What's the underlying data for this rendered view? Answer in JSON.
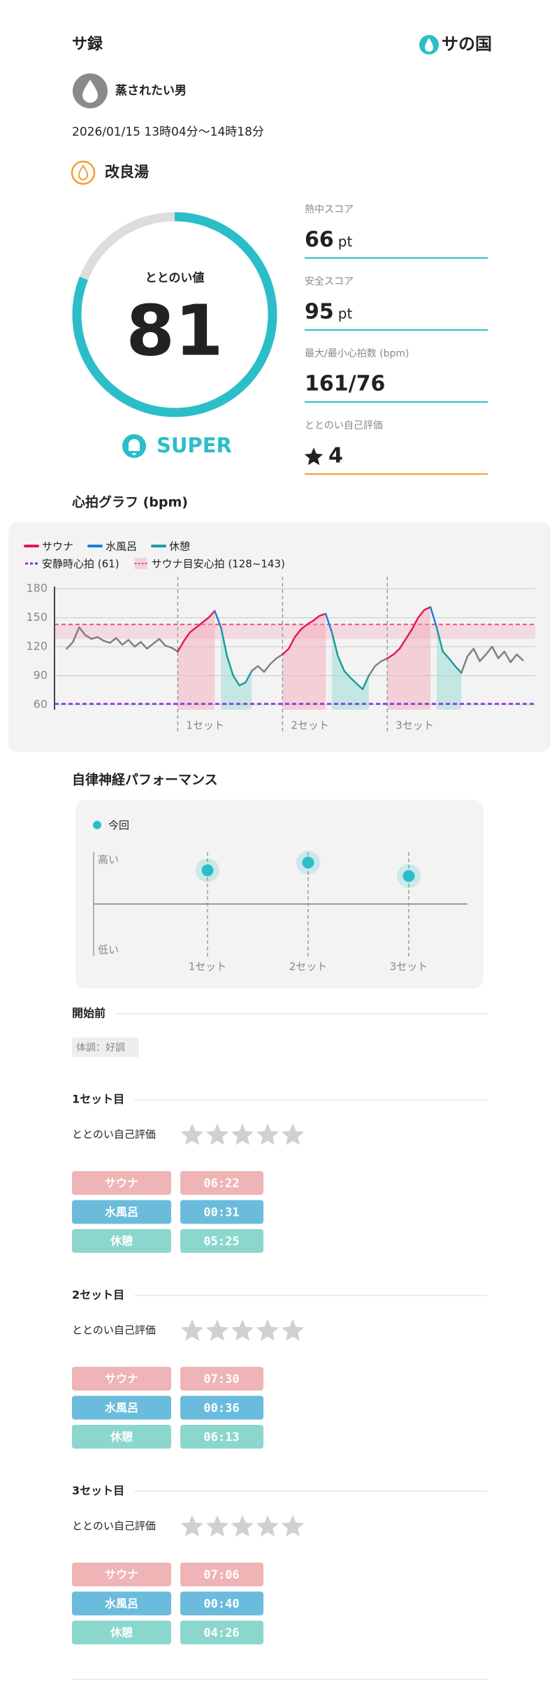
{
  "header": {
    "title": "サ録",
    "logo": "サの国"
  },
  "user": {
    "name": "蒸されたい男"
  },
  "session": {
    "datetime": "2026/01/15 13時04分〜14時18分",
    "facility": "改良湯"
  },
  "totonoi": {
    "label": "ととのい値",
    "value": 81,
    "lim": [
      0,
      100
    ],
    "rank": "SUPER",
    "color": "#2bbec8"
  },
  "scores": [
    {
      "label": "熱中スコア",
      "value": 66,
      "unit": "pt",
      "color": "#2bbec8"
    },
    {
      "label": "安全スコア",
      "value": 95,
      "unit": "pt",
      "color": "#2bbec8"
    },
    {
      "label": "最大/最小心拍数 (bpm)",
      "value": "161/76",
      "color": "#2bbec8"
    },
    {
      "label": "ととのい自己評価",
      "value": 4,
      "color": "#f0a030"
    }
  ],
  "chart_data": [
    {
      "type": "line",
      "title": "心拍グラフ (bpm)",
      "x": [
        0,
        1,
        2,
        3,
        4,
        5,
        6,
        7,
        8,
        9,
        10,
        11,
        12,
        13,
        14,
        15,
        16,
        17,
        18,
        19,
        20,
        21,
        22,
        23,
        24,
        25,
        26,
        27,
        28,
        29,
        30,
        31,
        32,
        33,
        34,
        35,
        36,
        37,
        38,
        39,
        40,
        41,
        42,
        43,
        44,
        45,
        46,
        47,
        48,
        49,
        50,
        51,
        52,
        53,
        54,
        55,
        56,
        57,
        58,
        59,
        60,
        61,
        62,
        63,
        64,
        65,
        66,
        67,
        68,
        69,
        70,
        71,
        72,
        73,
        74
      ],
      "xlim": [
        -2,
        76
      ],
      "ylim": [
        55,
        185
      ],
      "yticks": [
        60,
        90,
        120,
        150,
        180
      ],
      "grid": true,
      "series": [
        {
          "color": "#808080",
          "values": [
            118,
            125,
            140,
            132,
            128,
            130,
            126,
            124,
            129,
            122,
            127,
            120,
            125,
            118,
            123,
            128,
            121,
            119,
            115,
            null,
            null,
            null,
            null,
            null,
            null,
            null,
            null,
            null,
            null,
            null,
            95,
            100,
            94,
            102,
            108,
            112,
            null,
            null,
            null,
            null,
            null,
            null,
            null,
            null,
            null,
            null,
            null,
            null,
            null,
            90,
            100,
            105,
            108,
            null,
            null,
            null,
            null,
            null,
            null,
            null,
            null,
            null,
            null,
            null,
            93,
            110,
            118,
            105,
            112,
            120,
            108,
            115,
            104,
            112,
            106
          ]
        },
        {
          "name": "サウナ",
          "color": "#e8194f",
          "area": "#f4a3b6",
          "values": [
            null,
            null,
            null,
            null,
            null,
            null,
            null,
            null,
            null,
            null,
            null,
            null,
            null,
            null,
            null,
            null,
            null,
            null,
            115,
            126,
            135,
            140,
            145,
            150,
            157,
            null,
            null,
            null,
            null,
            null,
            null,
            null,
            null,
            null,
            null,
            112,
            118,
            130,
            138,
            143,
            147,
            152,
            154,
            null,
            null,
            null,
            null,
            null,
            null,
            null,
            null,
            null,
            108,
            112,
            118,
            128,
            138,
            150,
            158,
            161,
            null,
            null,
            null,
            null,
            null,
            null,
            null,
            null,
            null,
            null,
            null,
            null,
            null,
            null,
            null
          ]
        },
        {
          "name": "水風呂",
          "color": "#1e7fe0",
          "values": [
            null,
            null,
            null,
            null,
            null,
            null,
            null,
            null,
            null,
            null,
            null,
            null,
            null,
            null,
            null,
            null,
            null,
            null,
            null,
            null,
            null,
            null,
            null,
            null,
            157,
            140,
            null,
            null,
            null,
            null,
            null,
            null,
            null,
            null,
            null,
            null,
            null,
            null,
            null,
            null,
            null,
            null,
            154,
            135,
            null,
            null,
            null,
            null,
            null,
            null,
            null,
            null,
            null,
            null,
            null,
            null,
            null,
            null,
            null,
            161,
            140,
            null,
            null,
            null,
            null,
            null,
            null,
            null,
            null,
            null,
            null,
            null,
            null,
            null,
            null
          ]
        },
        {
          "name": "休憩",
          "color": "#1a9e9a",
          "area": "#8fd9d2",
          "values": [
            null,
            null,
            null,
            null,
            null,
            null,
            null,
            null,
            null,
            null,
            null,
            null,
            null,
            null,
            null,
            null,
            null,
            null,
            null,
            null,
            null,
            null,
            null,
            null,
            null,
            140,
            110,
            90,
            80,
            83,
            95,
            null,
            null,
            null,
            null,
            null,
            null,
            null,
            null,
            null,
            null,
            null,
            null,
            135,
            110,
            95,
            88,
            82,
            76,
            90,
            null,
            null,
            null,
            null,
            null,
            null,
            null,
            null,
            null,
            null,
            140,
            115,
            108,
            100,
            93,
            null,
            null,
            null,
            null,
            null,
            null,
            null,
            null,
            null,
            null
          ]
        }
      ],
      "reference_line": {
        "name": "安静時心拍 (61)",
        "value": 61,
        "color": "#8a2be2"
      },
      "target_band": {
        "name": "サウナ目安心拍 (128~143)",
        "range": [
          128,
          143
        ],
        "color": "#f0507a"
      },
      "set_markers": [
        {
          "x": 18,
          "label": "1セット"
        },
        {
          "x": 35,
          "label": "2セット"
        },
        {
          "x": 52,
          "label": "3セット"
        }
      ]
    },
    {
      "type": "dot",
      "title": "自律神経パフォーマンス",
      "categories": [
        "1セット",
        "2セット",
        "3セット"
      ],
      "series": [
        {
          "name": "今回",
          "color": "#2bbec8",
          "values": [
            0.65,
            0.8,
            0.54
          ]
        }
      ],
      "ylim": [
        -1,
        1
      ],
      "y_high": "高い",
      "y_low": "低い"
    }
  ],
  "pre": {
    "title": "開始前",
    "condition": "体調：好調"
  },
  "sets": [
    {
      "title": "1セット目",
      "rating_label": "ととのい自己評価",
      "phases": [
        {
          "name": "サウナ",
          "time": "06:22"
        },
        {
          "name": "水風呂",
          "time": "00:31"
        },
        {
          "name": "休憩",
          "time": "05:25"
        }
      ]
    },
    {
      "title": "2セット目",
      "rating_label": "ととのい自己評価",
      "phases": [
        {
          "name": "サウナ",
          "time": "07:30"
        },
        {
          "name": "水風呂",
          "time": "00:36"
        },
        {
          "name": "休憩",
          "time": "06:13"
        }
      ]
    },
    {
      "title": "3セット目",
      "rating_label": "ととのい自己評価",
      "phases": [
        {
          "name": "サウナ",
          "time": "07:06"
        },
        {
          "name": "水風呂",
          "time": "00:40"
        },
        {
          "name": "休憩",
          "time": "04:26"
        }
      ]
    }
  ]
}
